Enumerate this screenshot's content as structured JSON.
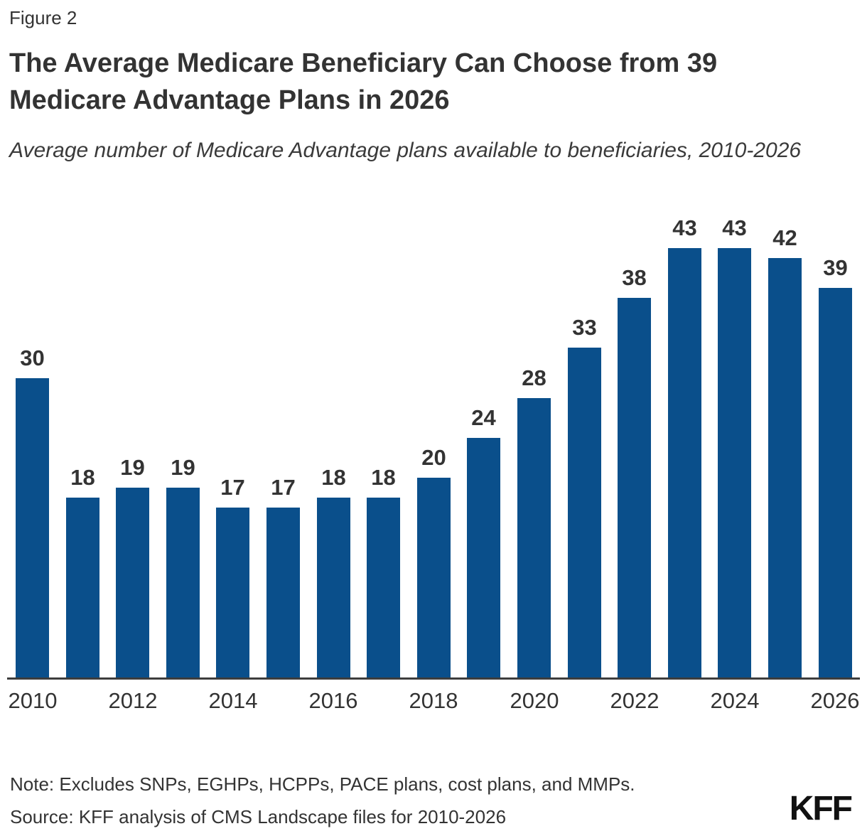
{
  "figure_label": "Figure 2",
  "title": "The Average Medicare Beneficiary Can Choose from 39 Medicare Advantage Plans in 2026",
  "subtitle": "Average number of Medicare Advantage plans available to beneficiaries, 2010-2026",
  "footer": {
    "note": "Note: Excludes SNPs, EGHPs, HCPPs, PACE plans, cost plans, and MMPs.",
    "source": "Source: KFF analysis of CMS Landscape files for 2010-2026",
    "logo_text": "KFF"
  },
  "colors": {
    "bar": "#0a4f8b",
    "text": "#333333",
    "axis_line": "#3d3d3d",
    "logo": "#111111",
    "background": "#ffffff"
  },
  "chart_data": {
    "type": "bar",
    "title": "The Average Medicare Beneficiary Can Choose from 39 Medicare Advantage Plans in 2026",
    "subtitle": "Average number of Medicare Advantage plans available to beneficiaries, 2010-2026",
    "categories": [
      "2010",
      "2011",
      "2012",
      "2013",
      "2014",
      "2015",
      "2016",
      "2017",
      "2018",
      "2019",
      "2020",
      "2021",
      "2022",
      "2023",
      "2024",
      "2025",
      "2026"
    ],
    "values": [
      30,
      18,
      19,
      19,
      17,
      17,
      18,
      18,
      20,
      24,
      28,
      33,
      38,
      43,
      43,
      42,
      39
    ],
    "x_tick_labels": [
      "2010",
      "2012",
      "2014",
      "2016",
      "2018",
      "2020",
      "2022",
      "2024",
      "2026"
    ],
    "data_labels_shown": true,
    "xlabel": "",
    "ylabel": "",
    "ylim": [
      0,
      43
    ],
    "grid": false,
    "legend": "none",
    "bar_color": "#0a4f8b"
  }
}
